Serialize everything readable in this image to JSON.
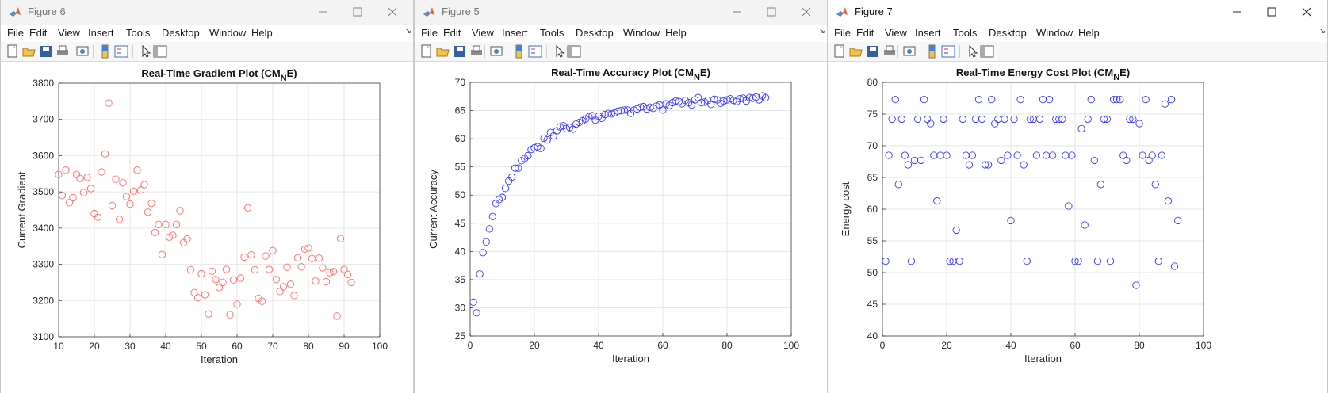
{
  "menu_labels": [
    "File",
    "Edit",
    "View",
    "Insert",
    "Tools",
    "Desktop",
    "Window",
    "Help"
  ],
  "windows": [
    {
      "title": "Figure 6",
      "active": false,
      "chart_data": {
        "type": "scatter",
        "title": "Real-Time Gradient Plot (CM",
        "title_sub": "N",
        "title_end": "E)",
        "xlabel": "Iteration",
        "ylabel": "Current Gradient",
        "xlim": [
          10,
          100
        ],
        "ylim": [
          3100,
          3800
        ],
        "xticks": [
          10,
          20,
          30,
          40,
          50,
          60,
          70,
          80,
          90,
          100
        ],
        "yticks": [
          3100,
          3200,
          3300,
          3400,
          3500,
          3600,
          3700,
          3800
        ],
        "grid": true,
        "marker_color": "#ff6b6b",
        "x": [
          10,
          11,
          12,
          13,
          14,
          15,
          16,
          17,
          18,
          19,
          20,
          21,
          22,
          23,
          24,
          25,
          26,
          27,
          28,
          29,
          30,
          31,
          32,
          33,
          34,
          35,
          36,
          37,
          38,
          39,
          40,
          41,
          42,
          43,
          44,
          45,
          46,
          47,
          48,
          49,
          50,
          51,
          52,
          53,
          54,
          55,
          56,
          57,
          58,
          59,
          60,
          61,
          62,
          63,
          64,
          65,
          66,
          67,
          68,
          69,
          70,
          71,
          72,
          73,
          74,
          75,
          76,
          77,
          78,
          79,
          80,
          81,
          82,
          83,
          84,
          85,
          86,
          87,
          88,
          89,
          90,
          91,
          92
        ],
        "y": [
          3548,
          3490,
          3560,
          3470,
          3484,
          3548,
          3537,
          3498,
          3540,
          3509,
          3440,
          3430,
          3555,
          3605,
          3745,
          3462,
          3535,
          3424,
          3525,
          3487,
          3466,
          3502,
          3560,
          3505,
          3520,
          3444,
          3468,
          3388,
          3410,
          3327,
          3410,
          3375,
          3380,
          3410,
          3448,
          3360,
          3370,
          3285,
          3222,
          3208,
          3274,
          3216,
          3163,
          3281,
          3258,
          3236,
          3250,
          3286,
          3161,
          3257,
          3190,
          3262,
          3320,
          3456,
          3326,
          3285,
          3206,
          3198,
          3323,
          3286,
          3338,
          3258,
          3225,
          3238,
          3292,
          3245,
          3214,
          3318,
          3293,
          3342,
          3345,
          3316,
          3254,
          3317,
          3290,
          3252,
          3277,
          3280,
          3157,
          3371,
          3286,
          3272,
          3250
        ]
      }
    },
    {
      "title": "Figure 5",
      "active": false,
      "chart_data": {
        "type": "scatter",
        "title": "Real-Time Accuracy Plot (CM",
        "title_sub": "N",
        "title_end": "E)",
        "xlabel": "Iteration",
        "ylabel": "Current Accuracy",
        "xlim": [
          0,
          100
        ],
        "ylim": [
          25,
          70
        ],
        "xticks": [
          0,
          20,
          40,
          60,
          80,
          100
        ],
        "yticks": [
          25,
          30,
          35,
          40,
          45,
          50,
          55,
          60,
          65,
          70
        ],
        "grid": true,
        "marker_color": "#3b3bff",
        "x": [
          1,
          2,
          3,
          4,
          5,
          6,
          7,
          8,
          9,
          10,
          11,
          12,
          13,
          14,
          15,
          16,
          17,
          18,
          19,
          20,
          21,
          22,
          23,
          24,
          25,
          26,
          27,
          28,
          29,
          30,
          31,
          32,
          33,
          34,
          35,
          36,
          37,
          38,
          39,
          40,
          41,
          42,
          43,
          44,
          45,
          46,
          47,
          48,
          49,
          50,
          51,
          52,
          53,
          54,
          55,
          56,
          57,
          58,
          59,
          60,
          61,
          62,
          63,
          64,
          65,
          66,
          67,
          68,
          69,
          70,
          71,
          72,
          73,
          74,
          75,
          76,
          77,
          78,
          79,
          80,
          81,
          82,
          83,
          84,
          85,
          86,
          87,
          88,
          89,
          90,
          91,
          92
        ],
        "y": [
          31.0,
          29.1,
          36.0,
          39.8,
          41.7,
          44.0,
          46.2,
          48.5,
          49.2,
          49.6,
          51.2,
          52.5,
          53.2,
          54.8,
          54.8,
          56.1,
          56.5,
          57.0,
          58.1,
          58.4,
          58.6,
          58.3,
          60.1,
          59.8,
          61.1,
          60.5,
          61.4,
          62.1,
          62.3,
          61.8,
          62.0,
          61.7,
          62.6,
          62.9,
          63.2,
          63.5,
          63.9,
          64.1,
          63.3,
          64.0,
          63.6,
          64.3,
          64.5,
          64.4,
          64.6,
          64.9,
          65.0,
          65.1,
          65.1,
          64.5,
          65.1,
          65.3,
          65.6,
          65.7,
          65.3,
          65.6,
          65.4,
          65.8,
          66.0,
          65.1,
          66.2,
          65.9,
          66.4,
          66.7,
          66.6,
          66.2,
          66.8,
          66.4,
          66.0,
          66.9,
          67.3,
          66.4,
          66.5,
          66.8,
          66.1,
          67.0,
          66.9,
          66.3,
          66.7,
          66.9,
          67.1,
          66.8,
          66.6,
          67.1,
          67.2,
          66.7,
          67.3,
          67.2,
          67.4,
          66.9,
          67.6,
          67.3
        ]
      }
    },
    {
      "title": "Figure 7",
      "active": true,
      "chart_data": {
        "type": "scatter",
        "title": "Real-Time Energy Cost Plot (CM",
        "title_sub": "N",
        "title_end": "E)",
        "xlabel": "Iteration",
        "ylabel": "Energy cost",
        "xlim": [
          0,
          100
        ],
        "ylim": [
          40,
          80
        ],
        "xticks": [
          0,
          20,
          40,
          60,
          80,
          100
        ],
        "yticks": [
          40,
          45,
          50,
          55,
          60,
          65,
          70,
          75,
          80
        ],
        "grid": true,
        "marker_color": "#3b3bff",
        "x": [
          1,
          2,
          3,
          4,
          5,
          6,
          7,
          8,
          9,
          10,
          11,
          12,
          13,
          14,
          15,
          16,
          17,
          18,
          19,
          20,
          21,
          22,
          23,
          24,
          25,
          26,
          27,
          28,
          29,
          30,
          31,
          32,
          33,
          34,
          35,
          36,
          37,
          38,
          39,
          40,
          41,
          42,
          43,
          44,
          45,
          46,
          47,
          48,
          49,
          50,
          51,
          52,
          53,
          54,
          55,
          56,
          57,
          58,
          59,
          60,
          61,
          62,
          63,
          64,
          65,
          66,
          67,
          68,
          69,
          70,
          71,
          72,
          73,
          74,
          75,
          76,
          77,
          78,
          79,
          80,
          81,
          82,
          83,
          84,
          85,
          86,
          87,
          88,
          89,
          90,
          91,
          92
        ],
        "y": [
          51.8,
          68.5,
          74.2,
          77.3,
          63.9,
          74.2,
          68.5,
          67.0,
          51.8,
          67.7,
          74.2,
          67.7,
          77.3,
          74.2,
          73.5,
          68.5,
          61.3,
          68.5,
          74.2,
          68.5,
          51.8,
          51.8,
          56.7,
          51.8,
          74.2,
          68.5,
          67.0,
          68.5,
          74.2,
          77.3,
          74.2,
          67.0,
          67.0,
          77.3,
          73.5,
          74.2,
          67.7,
          74.2,
          68.5,
          58.2,
          74.2,
          68.5,
          77.3,
          67.0,
          51.8,
          74.2,
          74.2,
          68.5,
          74.2,
          77.3,
          68.5,
          77.3,
          68.5,
          74.2,
          74.2,
          74.2,
          68.5,
          60.5,
          68.5,
          51.8,
          51.8,
          72.7,
          57.5,
          74.2,
          77.3,
          67.7,
          51.8,
          63.9,
          74.2,
          74.2,
          51.8,
          77.3,
          77.3,
          77.3,
          68.5,
          67.7,
          74.2,
          74.2,
          48.0,
          73.5,
          68.5,
          77.3,
          67.7,
          68.5,
          63.9,
          51.8,
          68.5,
          76.6,
          61.3,
          77.3,
          51.0,
          58.2
        ]
      }
    }
  ]
}
